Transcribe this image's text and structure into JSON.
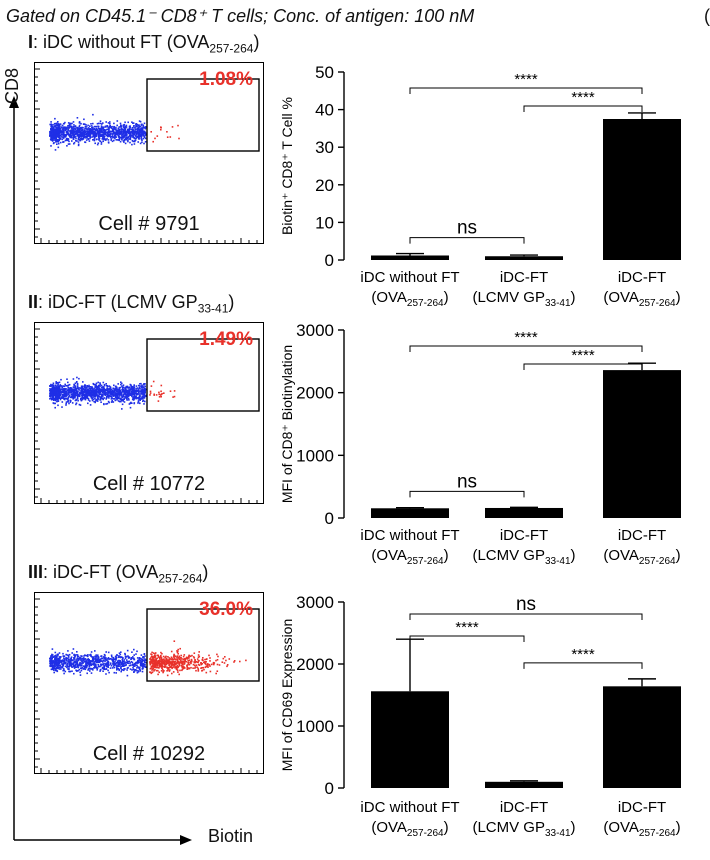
{
  "header": {
    "text": "Gated on CD45.1⁻ CD8⁺ T cells; Conc. of antigen: 100 nM",
    "corner_char": "("
  },
  "axes": {
    "y_label": "CD8",
    "x_label": "Biotin"
  },
  "panels": [
    {
      "roman": "I",
      "title_main": ": iDC without FT (OVA",
      "title_sub": "257-264",
      "title_tail": ")",
      "gate_percent": "1.08%",
      "cell_count": "Cell # 9791",
      "gated_fraction": 0.0108
    },
    {
      "roman": "II",
      "title_main": ": iDC-FT (LCMV GP",
      "title_sub": "33-41",
      "title_tail": ")",
      "gate_percent": "1.49%",
      "cell_count": "Cell # 10772",
      "gated_fraction": 0.0149
    },
    {
      "roman": "III",
      "title_main": ": iDC-FT (OVA",
      "title_sub": "257-264",
      "title_tail": ")",
      "gate_percent": "36.0%",
      "cell_count": "Cell # 10292",
      "gated_fraction": 0.36
    }
  ],
  "colors": {
    "ungated": "#1f2fe6",
    "gated": "#e8312a",
    "bar": "#000000",
    "gate_text": "#e8312a"
  },
  "chart_data": [
    {
      "type": "bar",
      "ylabel": "Biotin⁺ CD8⁺ T Cell %",
      "ylim": [
        0,
        50
      ],
      "yticks": [
        0,
        10,
        20,
        30,
        40,
        50
      ],
      "categories": [
        {
          "main": "iDC without FT",
          "sub_pre": "(OVA",
          "sub": "257-264",
          "sub_post": ")"
        },
        {
          "main": "iDC-FT",
          "sub_pre": "(LCMV GP",
          "sub": "33-41",
          "sub_post": ")"
        },
        {
          "main": "iDC-FT",
          "sub_pre": "(OVA",
          "sub": "257-264",
          "sub_post": ")"
        }
      ],
      "values": [
        1.2,
        1.0,
        37.5
      ],
      "errors": [
        0.5,
        0.3,
        1.6
      ],
      "significance": [
        {
          "from": 0,
          "to": 1,
          "label": "ns"
        },
        {
          "from": 1,
          "to": 2,
          "label": "****"
        },
        {
          "from": 0,
          "to": 2,
          "label": "****"
        }
      ]
    },
    {
      "type": "bar",
      "ylabel": "MFI of CD8⁺ Biotinylation",
      "ylim": [
        0,
        3000
      ],
      "yticks": [
        0,
        1000,
        2000,
        3000
      ],
      "categories": [
        {
          "main": "iDC without FT",
          "sub_pre": "(OVA",
          "sub": "257-264",
          "sub_post": ")"
        },
        {
          "main": "iDC-FT",
          "sub_pre": "(LCMV GP",
          "sub": "33-41",
          "sub_post": ")"
        },
        {
          "main": "iDC-FT",
          "sub_pre": "(OVA",
          "sub": "257-264",
          "sub_post": ")"
        }
      ],
      "values": [
        155,
        160,
        2360
      ],
      "errors": [
        10,
        10,
        110
      ],
      "significance": [
        {
          "from": 0,
          "to": 1,
          "label": "ns"
        },
        {
          "from": 1,
          "to": 2,
          "label": "****"
        },
        {
          "from": 0,
          "to": 2,
          "label": "****"
        }
      ]
    },
    {
      "type": "bar",
      "ylabel": "MFI of CD69 Expression",
      "ylim": [
        0,
        3000
      ],
      "yticks": [
        0,
        1000,
        2000,
        3000
      ],
      "categories": [
        {
          "main": "iDC without FT",
          "sub_pre": "(OVA",
          "sub": "257-264",
          "sub_post": ")"
        },
        {
          "main": "iDC-FT",
          "sub_pre": "(LCMV GP",
          "sub": "33-41",
          "sub_post": ")"
        },
        {
          "main": "iDC-FT",
          "sub_pre": "(OVA",
          "sub": "257-264",
          "sub_post": ")"
        }
      ],
      "values": [
        1560,
        100,
        1640
      ],
      "errors": [
        840,
        15,
        120
      ],
      "significance": [
        {
          "from": 0,
          "to": 1,
          "label": "****"
        },
        {
          "from": 1,
          "to": 2,
          "label": "****"
        },
        {
          "from": 0,
          "to": 2,
          "label": "ns"
        }
      ]
    }
  ]
}
